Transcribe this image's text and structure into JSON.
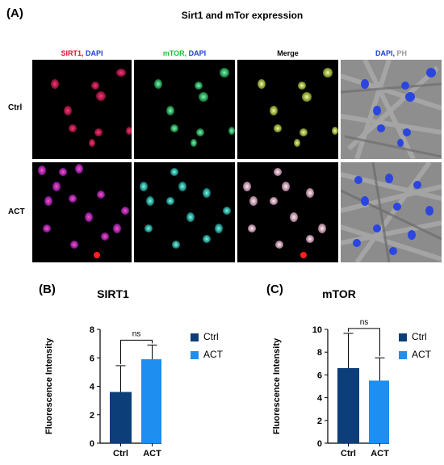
{
  "figure": {
    "panel_a_letter": "(A)",
    "panel_a_title": "Sirt1 and mTor expression",
    "columns": [
      {
        "parts": [
          {
            "text": "SIRT1, ",
            "color": "#e8102e"
          },
          {
            "text": "DAPI",
            "color": "#1f3fd6"
          }
        ]
      },
      {
        "parts": [
          {
            "text": "mTOR, ",
            "color": "#18c23a"
          },
          {
            "text": "DAPI",
            "color": "#1f3fd6"
          }
        ]
      },
      {
        "parts": [
          {
            "text": "Merge",
            "color": "#000000"
          }
        ]
      },
      {
        "parts": [
          {
            "text": "DAPI, ",
            "color": "#1f3fd6"
          },
          {
            "text": "PH",
            "color": "#9a9a9a"
          }
        ]
      }
    ],
    "rows": [
      "Ctrl",
      "ACT"
    ],
    "panel_b_letter": "(B)",
    "panel_c_letter": "(C)"
  },
  "chart_data": [
    {
      "type": "bar",
      "title": "SIRT1",
      "categories": [
        "Ctrl",
        "ACT"
      ],
      "values": [
        3.6,
        5.9
      ],
      "error": [
        1.85,
        1.0
      ],
      "ylabel": "Fluorescence Intensity",
      "xlabel": "",
      "ylim": [
        0,
        8
      ],
      "yticks": [
        0,
        2,
        4,
        6,
        8
      ],
      "colors": [
        "#0c3e7a",
        "#1e8ef0"
      ],
      "significance": "ns",
      "legend": [
        "Ctrl",
        "ACT"
      ],
      "legend_position": "right"
    },
    {
      "type": "bar",
      "title": "mTOR",
      "categories": [
        "Ctrl",
        "ACT"
      ],
      "values": [
        6.6,
        5.5
      ],
      "error": [
        3.05,
        2.0
      ],
      "ylabel": "Fluorescence Intensity",
      "xlabel": "",
      "ylim": [
        0,
        10
      ],
      "yticks": [
        0,
        2,
        4,
        6,
        8,
        10
      ],
      "colors": [
        "#0c3e7a",
        "#1e8ef0"
      ],
      "significance": "ns",
      "legend": [
        "Ctrl",
        "ACT"
      ],
      "legend_position": "right"
    }
  ]
}
